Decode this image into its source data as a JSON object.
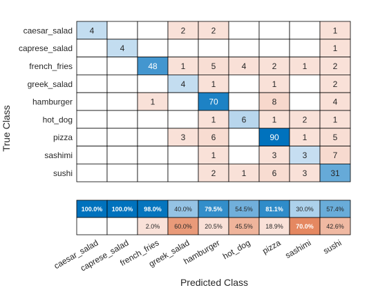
{
  "chart_data": {
    "type": "heatmap",
    "xlabel": "Predicted Class",
    "ylabel": "True Class",
    "classes": [
      "caesar_salad",
      "caprese_salad",
      "french_fries",
      "greek_salad",
      "hamburger",
      "hot_dog",
      "pizza",
      "sashimi",
      "sushi"
    ],
    "matrix": [
      [
        4,
        null,
        null,
        2,
        2,
        null,
        null,
        null,
        1
      ],
      [
        null,
        4,
        null,
        null,
        null,
        null,
        null,
        null,
        1
      ],
      [
        null,
        null,
        48,
        1,
        5,
        4,
        2,
        1,
        2
      ],
      [
        null,
        null,
        null,
        4,
        1,
        null,
        1,
        null,
        2
      ],
      [
        null,
        null,
        1,
        null,
        70,
        null,
        8,
        null,
        4
      ],
      [
        null,
        null,
        null,
        null,
        1,
        6,
        1,
        2,
        1
      ],
      [
        null,
        null,
        null,
        3,
        6,
        null,
        90,
        1,
        5
      ],
      [
        null,
        null,
        null,
        null,
        1,
        null,
        3,
        3,
        7
      ],
      [
        null,
        null,
        null,
        null,
        2,
        1,
        6,
        3,
        31
      ]
    ],
    "column_summary": {
      "correct": [
        "100.0%",
        "100.0%",
        "98.0%",
        "40.0%",
        "79.5%",
        "54.5%",
        "81.1%",
        "30.0%",
        "57.4%"
      ],
      "incorrect": [
        "",
        "",
        "2.0%",
        "60.0%",
        "20.5%",
        "45.5%",
        "18.9%",
        "70.0%",
        "42.6%"
      ]
    },
    "colors": {
      "correct_strong": "#0072bd",
      "correct_light": "#c6def1",
      "incorrect_strong": "#d95319",
      "incorrect_light": "#f9e1d8",
      "grid": "#000000"
    }
  }
}
